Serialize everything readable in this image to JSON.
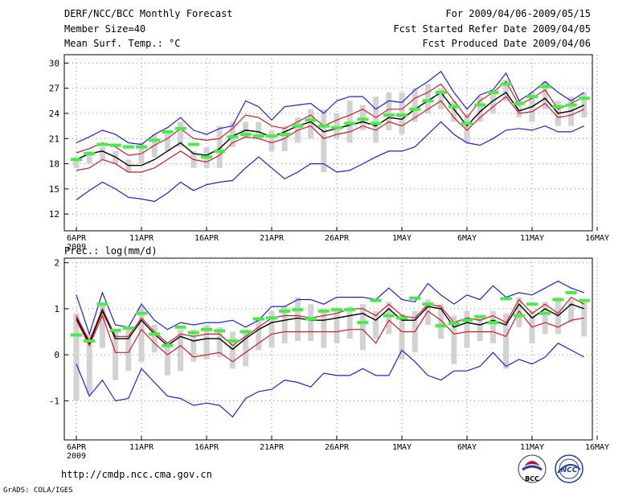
{
  "header": {
    "title": "DERF/NCC/BCC Monthly Forecast",
    "member_size": "Member Size=40",
    "variable": "Mean Surf. Temp.: °C",
    "period": "For 2009/04/06-2009/05/15",
    "started": "Fcst Started Refer Date 2009/04/05",
    "produced": "Fcst Produced Date 2009/04/06"
  },
  "footer": {
    "url": "http://cmdp.ncc.cma.gov.cn",
    "credit": "GrADS: COLA/IGES",
    "logo_left": "BCC",
    "logo_right": "NCC"
  },
  "colors": {
    "envelope": "#1f1fdc",
    "spread": "#d01c24",
    "mean": "#000000",
    "box": "#d2d2d2",
    "marker": "#44ee44",
    "grid": "#888888"
  },
  "chart_data": [
    {
      "type": "line",
      "title": "Mean Surf. Temp.: °C",
      "x_ticks": [
        "6APR",
        "11APR",
        "16APR",
        "21APR",
        "26APR",
        "1MAY",
        "6MAY",
        "11MAY",
        "16MAY"
      ],
      "x_year": "2009",
      "xlim": [
        0,
        39
      ],
      "ylim": [
        10,
        31
      ],
      "y_ticks": [
        12,
        15,
        18,
        21,
        24,
        27,
        30
      ],
      "series": [
        {
          "name": "max",
          "color": "#1f1fdc",
          "values": [
            20.5,
            21.2,
            22,
            21.5,
            20.5,
            20.3,
            21.5,
            22.3,
            23.5,
            22,
            21.5,
            22.2,
            22.5,
            25.5,
            24.8,
            23.2,
            24.8,
            25,
            25.2,
            24,
            25.5,
            26,
            26,
            24.5,
            25.5,
            25.3,
            26.8,
            27.8,
            29,
            26.5,
            24.5,
            26.2,
            26.8,
            28.8,
            25.5,
            26.5,
            27.8,
            26.5,
            25.5,
            26.5
          ]
        },
        {
          "name": "upper",
          "color": "#d01c24",
          "values": [
            19.3,
            19.8,
            20.5,
            20,
            19,
            19.2,
            20.2,
            21,
            22.2,
            21,
            20.8,
            21,
            22.2,
            23.8,
            23.5,
            22.5,
            22.2,
            23,
            23.8,
            22.5,
            23.2,
            23.8,
            24.5,
            23.5,
            24.5,
            24.5,
            25.8,
            26.5,
            27.5,
            25.5,
            23.5,
            25.5,
            26.5,
            27.8,
            25,
            25.8,
            26.8,
            24.5,
            25.2,
            26
          ]
        },
        {
          "name": "mean",
          "color": "#000000",
          "values": [
            18.5,
            19.2,
            19.5,
            18.8,
            17.8,
            17.8,
            18.5,
            19.5,
            20.5,
            19.2,
            19,
            19.8,
            21.3,
            22,
            21.8,
            21.2,
            21.8,
            22.5,
            23,
            21.8,
            22.2,
            22.6,
            23,
            22.5,
            23.5,
            23.3,
            24.5,
            25.5,
            26.5,
            24.5,
            22.5,
            24.2,
            25.5,
            26.5,
            24.3,
            24.8,
            25.8,
            24,
            24.3,
            25
          ]
        },
        {
          "name": "lower",
          "color": "#d01c24",
          "values": [
            17.2,
            17.5,
            18.5,
            18,
            17,
            17,
            17.5,
            18.5,
            19.5,
            18.5,
            18.2,
            19,
            20.5,
            21.2,
            21,
            20.5,
            21,
            22,
            22.5,
            21,
            21.5,
            21.8,
            22.5,
            22,
            23,
            22.5,
            23.5,
            24.5,
            25.5,
            23.5,
            22,
            23.5,
            24.8,
            26,
            24,
            24.2,
            25.2,
            23.5,
            23.8,
            24.5
          ]
        },
        {
          "name": "min",
          "color": "#1f1fdc",
          "values": [
            13.7,
            14.8,
            15.8,
            15,
            14,
            13.8,
            13.5,
            14.5,
            15.8,
            14.8,
            15.5,
            15.8,
            16,
            17.5,
            18.8,
            17.5,
            16.2,
            17,
            18,
            18,
            17,
            17.2,
            18,
            18.8,
            19.5,
            19.5,
            20,
            21.5,
            23,
            21.5,
            20.5,
            20.2,
            21,
            22,
            22.2,
            22,
            22.5,
            21.8,
            21.8,
            22.5
          ]
        },
        {
          "name": "box_high",
          "values": [
            18.8,
            19.5,
            20,
            19.5,
            18.5,
            20.5,
            21.5,
            22,
            23,
            19.5,
            20,
            22.5,
            23,
            23,
            23,
            22,
            22.5,
            23.5,
            24.5,
            24.5,
            24,
            25.5,
            25,
            26,
            26.5,
            26.5,
            27,
            27.5,
            27,
            25.5,
            24,
            26,
            26.5,
            28,
            25.5,
            26.5,
            27.8,
            25.5,
            26,
            26.5
          ]
        },
        {
          "name": "box_low",
          "values": [
            17.5,
            18,
            18.5,
            18,
            17,
            18,
            18.8,
            19.5,
            20,
            17.5,
            17.5,
            17.5,
            20,
            21,
            21,
            19.5,
            19.5,
            20.5,
            21,
            17,
            21,
            20.5,
            22,
            20.5,
            22,
            21.5,
            23,
            24,
            24.5,
            23,
            20.5,
            23,
            24,
            25.5,
            23.5,
            23,
            24.5,
            22.5,
            22.5,
            23.5
          ]
        },
        {
          "name": "marker",
          "values": [
            18.5,
            19.2,
            20.3,
            20.2,
            20,
            20,
            20.8,
            21.8,
            22.2,
            20.3,
            18.8,
            19.5,
            21.2,
            21.5,
            21.3,
            21.3,
            21.5,
            22.5,
            23.2,
            22.5,
            22.3,
            22.8,
            23.3,
            22.8,
            23.8,
            23.8,
            24.5,
            25.5,
            26.5,
            24.8,
            22.8,
            25,
            26.5,
            27.5,
            25.2,
            26,
            27.2,
            24.8,
            25,
            25.8
          ]
        }
      ]
    },
    {
      "type": "line",
      "title": "Prec.: log(mm/d)",
      "x_ticks": [
        "6APR",
        "11APR",
        "16APR",
        "21APR",
        "26APR",
        "1MAY",
        "6MAY",
        "11MAY",
        "16MAY"
      ],
      "x_year": "2009",
      "xlim": [
        0,
        39
      ],
      "ylim": [
        -1.85,
        2.1
      ],
      "y_ticks": [
        -1,
        0,
        1,
        2
      ],
      "series": [
        {
          "name": "max",
          "color": "#1f1fdc",
          "values": [
            1.3,
            0.45,
            1.35,
            0.65,
            0.6,
            1.1,
            0.75,
            0.55,
            0.7,
            0.65,
            0.7,
            0.7,
            0.75,
            0.6,
            0.75,
            1.05,
            1.05,
            1.2,
            1.2,
            1.1,
            1.25,
            1.25,
            1.25,
            1.2,
            1.45,
            1.2,
            1.15,
            1.55,
            1.3,
            1.1,
            1.3,
            1.2,
            1.5,
            1.25,
            1.35,
            1.3,
            1.45,
            1.6,
            1.45,
            1.35
          ]
        },
        {
          "name": "upper",
          "color": "#d01c24",
          "values": [
            0.85,
            0.3,
            1,
            0.4,
            0.4,
            0.8,
            0.5,
            0.25,
            0.45,
            0.4,
            0.45,
            0.45,
            0.2,
            0.4,
            0.6,
            0.8,
            0.85,
            0.85,
            0.8,
            0.85,
            0.9,
            1,
            1,
            0.85,
            1.1,
            0.85,
            0.8,
            1.1,
            1.05,
            0.7,
            0.8,
            0.75,
            0.85,
            0.7,
            1.2,
            0.9,
            1.1,
            0.9,
            1.25,
            1.1
          ]
        },
        {
          "name": "mean",
          "color": "#000000",
          "values": [
            0.8,
            0.25,
            0.95,
            0.35,
            0.35,
            0.75,
            0.45,
            0.2,
            0.4,
            0.3,
            0.35,
            0.35,
            0.12,
            0.35,
            0.55,
            0.7,
            0.75,
            0.8,
            0.75,
            0.75,
            0.8,
            0.85,
            0.9,
            0.75,
            1,
            0.75,
            0.75,
            1.05,
            1,
            0.6,
            0.7,
            0.65,
            0.75,
            0.65,
            1.1,
            0.8,
            1,
            0.85,
            1.1,
            1
          ]
        },
        {
          "name": "lower",
          "color": "#d01c24",
          "values": [
            0.75,
            0.2,
            0.85,
            0.05,
            0.05,
            0.55,
            0.25,
            0,
            0.2,
            -0.05,
            0,
            0.05,
            -0.15,
            0.05,
            0.25,
            0.45,
            0.5,
            0.5,
            0.5,
            0.5,
            0.5,
            0.55,
            0.55,
            0.25,
            0.75,
            0.5,
            0.5,
            0.95,
            0.75,
            0.45,
            0.5,
            0.5,
            0.5,
            0.4,
            0.95,
            0.6,
            0.7,
            0.6,
            0.75,
            0.8
          ]
        },
        {
          "name": "min",
          "color": "#1f1fdc",
          "values": [
            -0.2,
            -0.9,
            -0.55,
            -1,
            -0.95,
            -0.3,
            -0.6,
            -0.9,
            -0.95,
            -1.1,
            -1.05,
            -1.1,
            -1.35,
            -0.95,
            -0.8,
            -0.75,
            -0.55,
            -0.6,
            -0.7,
            -0.4,
            -0.45,
            -0.45,
            -0.3,
            -0.45,
            -0.45,
            0.1,
            -0.15,
            -0.45,
            -0.55,
            -0.35,
            -0.35,
            -0.25,
            0.05,
            -0.25,
            -0.1,
            -0.2,
            -0.05,
            0.25,
            0.1,
            -0.05
          ]
        },
        {
          "name": "box_high",
          "values": [
            0.9,
            0.45,
            1.1,
            0.55,
            0.55,
            1.05,
            0.65,
            0.25,
            0.55,
            0.55,
            0.65,
            0.6,
            0.5,
            0.55,
            0.75,
            0.95,
            1.05,
            1.25,
            1.1,
            0.95,
            1,
            1.05,
            1.1,
            0.95,
            1.15,
            0.9,
            0.95,
            1.2,
            1.1,
            0.85,
            0.95,
            0.85,
            0.95,
            0.9,
            1.25,
            0.95,
            1.15,
            1.25,
            1.2,
            1.15
          ]
        },
        {
          "name": "box_low",
          "values": [
            -1,
            -0.85,
            0.15,
            -0.55,
            -0.35,
            -0.15,
            0.05,
            -0.45,
            -0.35,
            -0.15,
            -0.1,
            -0.05,
            -0.3,
            -0.25,
            0.1,
            0.15,
            0.25,
            0.3,
            0.3,
            0.15,
            0.25,
            0.35,
            0.1,
            0.35,
            0.45,
            -0.1,
            0.05,
            0.65,
            0.35,
            -0.2,
            0.15,
            0.3,
            0.25,
            -0.3,
            0.6,
            0.25,
            0.45,
            0.45,
            0.7,
            0.4
          ]
        },
        {
          "name": "marker",
          "values": [
            0.43,
            0.3,
            1.1,
            0.53,
            0.58,
            0.9,
            0.45,
            0.2,
            0.6,
            0.48,
            0.55,
            0.52,
            0.3,
            0.5,
            0.78,
            0.8,
            0.95,
            0.98,
            0.78,
            0.95,
            0.98,
            0.98,
            0.7,
            1.18,
            0.85,
            0.8,
            1.23,
            1.1,
            0.63,
            0.68,
            0.75,
            0.83,
            0.7,
            1.22,
            0.85,
            1.1,
            0.9,
            1.2,
            1.35,
            1.18
          ]
        }
      ]
    }
  ]
}
